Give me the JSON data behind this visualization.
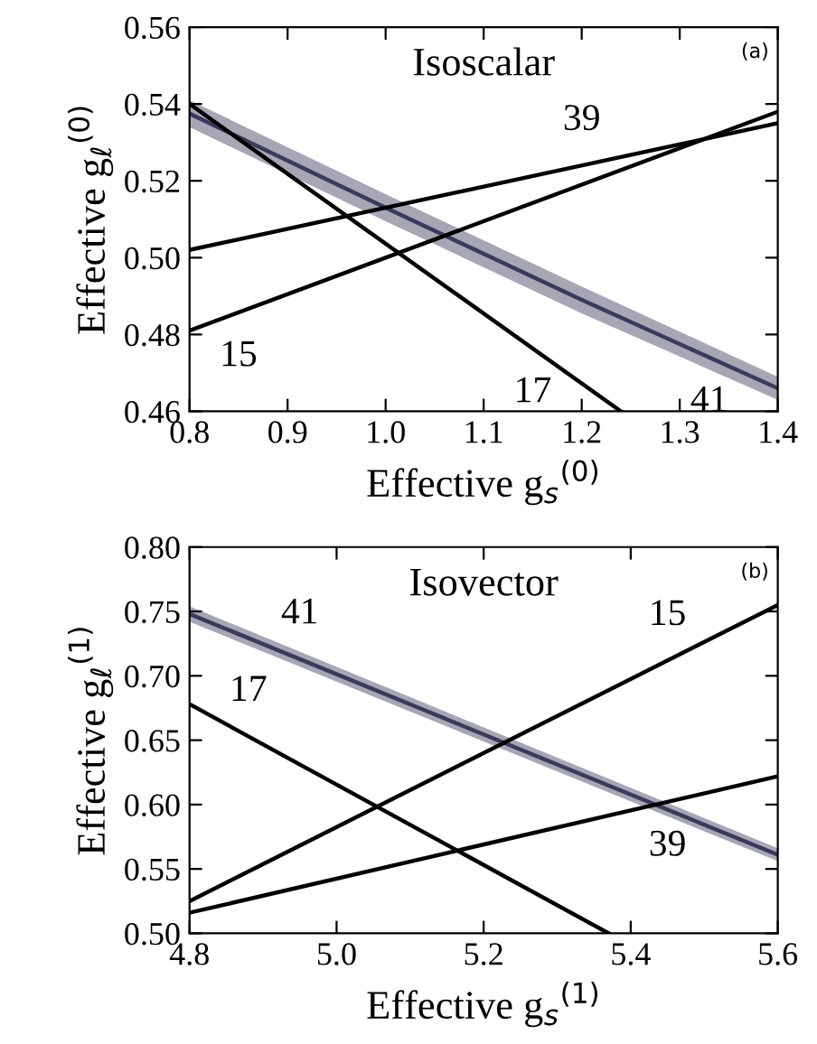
{
  "chart_data": [
    {
      "type": "line",
      "title": "Isoscalar",
      "xlabel": "Effective g$_{s}$$^{(0)}$",
      "ylabel": "Effective g$_{ℓ}$$^{(0)}$",
      "xlim": [
        0.8,
        1.4
      ],
      "xticks": [
        0.8,
        0.9,
        {
          "value": 1.0,
          "label": "1.0"
        },
        1.1,
        1.2,
        1.3,
        1.4
      ],
      "ylim": [
        0.46,
        0.56
      ],
      "yticks": [
        0.46,
        0.48,
        {
          "value": 0.5,
          "label": "0.50"
        },
        0.52,
        0.54,
        0.56
      ],
      "grid": false,
      "legend": false,
      "series": [
        {
          "color": "#3a3a5a",
          "x": [
            0.8,
            1.0,
            1.2,
            1.4
          ],
          "values": [
            0.5375,
            0.513,
            0.489,
            0.466
          ],
          "lower": [
            0.534,
            0.5095,
            0.4855,
            0.463
          ],
          "upper": [
            0.541,
            0.5165,
            0.4925,
            0.469
          ]
        },
        {
          "color": "#000000",
          "x": [
            0.8,
            1.4
          ],
          "values": [
            0.502,
            0.535
          ]
        },
        {
          "color": "#000000",
          "x": [
            0.8,
            1.4
          ],
          "values": [
            0.481,
            0.538
          ]
        },
        {
          "color": "#000000",
          "x": [
            0.8,
            1.24
          ],
          "values": [
            0.54,
            0.46
          ]
        }
      ],
      "annotations": [
        "(a)",
        {
          "text": "41",
          "x": 1.33,
          "y": 0.474
        },
        {
          "text": "39",
          "x": 1.2,
          "y": 0.524
        },
        {
          "text": "15",
          "x": 0.85,
          "y": 0.4858
        },
        {
          "text": "17",
          "x": 1.15,
          "y": 0.4764
        }
      ]
    },
    {
      "type": "line",
      "title": "Isovector",
      "xlabel": "Effective g$_{s}$$^{(1)}$",
      "ylabel": "Effective g$_{ℓ}$$^{(1)}$",
      "xlim": [
        4.8,
        5.6
      ],
      "xticks": [
        4.8,
        {
          "value": 5.0,
          "label": "5.0"
        },
        5.2,
        5.4,
        5.6
      ],
      "ylim": [
        0.5,
        0.8
      ],
      "yticks": [
        {
          "value": 0.5,
          "label": "0.50"
        },
        {
          "value": 0.55,
          "label": "0.55"
        },
        {
          "value": 0.6,
          "label": "0.60"
        },
        {
          "value": 0.65,
          "label": "0.65"
        },
        {
          "value": 0.7,
          "label": "0.70"
        },
        {
          "value": 0.75,
          "label": "0.75"
        },
        {
          "value": 0.8,
          "label": "0.80"
        }
      ],
      "grid": false,
      "legend": false,
      "series": [
        {
          "color": "#3a3a5a",
          "x": [
            4.8,
            5.6
          ],
          "values": [
            0.748,
            0.561
          ],
          "lower": [
            0.742,
            0.556
          ],
          "upper": [
            0.754,
            0.566
          ]
        },
        {
          "color": "#000000",
          "x": [
            4.8,
            5.6
          ],
          "values": [
            0.525,
            0.755
          ]
        },
        {
          "color": "#000000",
          "x": [
            4.8,
            5.6
          ],
          "values": [
            0.516,
            0.622
          ]
        },
        {
          "color": "#000000",
          "x": [
            4.8,
            5.37
          ],
          "values": [
            0.678,
            0.5
          ]
        }
      ],
      "annotations": [
        "(b)",
        {
          "text": "41",
          "x": 4.95,
          "y": 0.713
        },
        {
          "text": "15",
          "x": 5.45,
          "y": 0.7119
        },
        {
          "text": "39",
          "x": 5.45,
          "y": 0.6021
        },
        {
          "text": "17",
          "x": 4.88,
          "y": 0.653
        }
      ]
    }
  ]
}
